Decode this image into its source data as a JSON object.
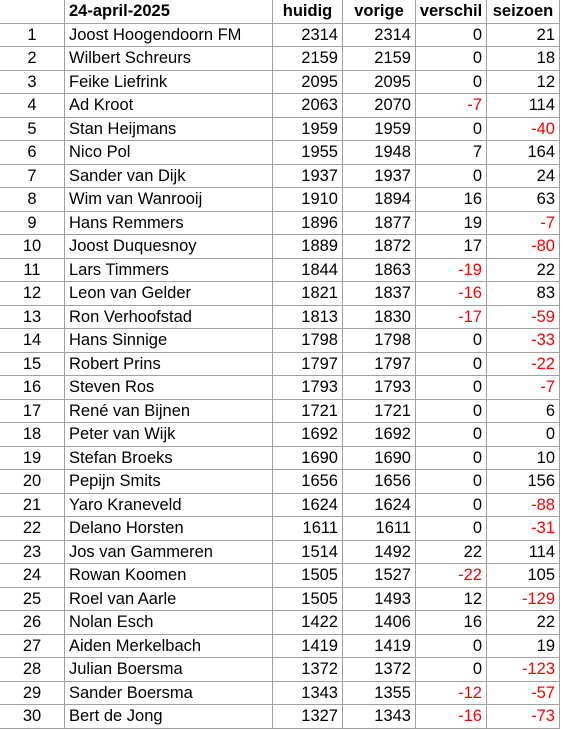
{
  "header": {
    "date": "24-april-2025",
    "columns": [
      "huidig",
      "vorige",
      "verschil",
      "seizoen"
    ]
  },
  "table": {
    "rows": [
      [
        1,
        "Joost Hoogendoorn FM",
        2314,
        2314,
        0,
        21
      ],
      [
        2,
        "Wilbert Schreurs",
        2159,
        2159,
        0,
        18
      ],
      [
        3,
        "Feike Liefrink",
        2095,
        2095,
        0,
        12
      ],
      [
        4,
        "Ad Kroot",
        2063,
        2070,
        -7,
        114
      ],
      [
        5,
        "Stan Heijmans",
        1959,
        1959,
        0,
        -40
      ],
      [
        6,
        "Nico Pol",
        1955,
        1948,
        7,
        164
      ],
      [
        7,
        "Sander van Dijk",
        1937,
        1937,
        0,
        24
      ],
      [
        8,
        "Wim van Wanrooij",
        1910,
        1894,
        16,
        63
      ],
      [
        9,
        "Hans Remmers",
        1896,
        1877,
        19,
        -7
      ],
      [
        10,
        "Joost Duquesnoy",
        1889,
        1872,
        17,
        -80
      ],
      [
        11,
        "Lars Timmers",
        1844,
        1863,
        -19,
        22
      ],
      [
        12,
        "Leon van Gelder",
        1821,
        1837,
        -16,
        83
      ],
      [
        13,
        "Ron Verhoofstad",
        1813,
        1830,
        -17,
        -59
      ],
      [
        14,
        "Hans Sinnige",
        1798,
        1798,
        0,
        -33
      ],
      [
        15,
        "Robert Prins",
        1797,
        1797,
        0,
        -22
      ],
      [
        16,
        "Steven Ros",
        1793,
        1793,
        0,
        -7
      ],
      [
        17,
        "René van Bijnen",
        1721,
        1721,
        0,
        6
      ],
      [
        18,
        "Peter van Wijk",
        1692,
        1692,
        0,
        0
      ],
      [
        19,
        "Stefan Broeks",
        1690,
        1690,
        0,
        10
      ],
      [
        20,
        "Pepijn Smits",
        1656,
        1656,
        0,
        156
      ],
      [
        21,
        "Yaro Kraneveld",
        1624,
        1624,
        0,
        -88
      ],
      [
        22,
        "Delano Horsten",
        1611,
        1611,
        0,
        -31
      ],
      [
        23,
        "Jos van Gammeren",
        1514,
        1492,
        22,
        114
      ],
      [
        24,
        "Rowan Koomen",
        1505,
        1527,
        -22,
        105
      ],
      [
        25,
        "Roel van Aarle",
        1505,
        1493,
        12,
        -129
      ],
      [
        26,
        "Nolan Esch",
        1422,
        1406,
        16,
        22
      ],
      [
        27,
        "Aiden Merkelbach",
        1419,
        1419,
        0,
        19
      ],
      [
        28,
        "Julian Boersma",
        1372,
        1372,
        0,
        -123
      ],
      [
        29,
        "Sander Boersma",
        1343,
        1355,
        -12,
        -57
      ],
      [
        30,
        "Bert de Jong",
        1327,
        1343,
        -16,
        -73
      ]
    ]
  }
}
